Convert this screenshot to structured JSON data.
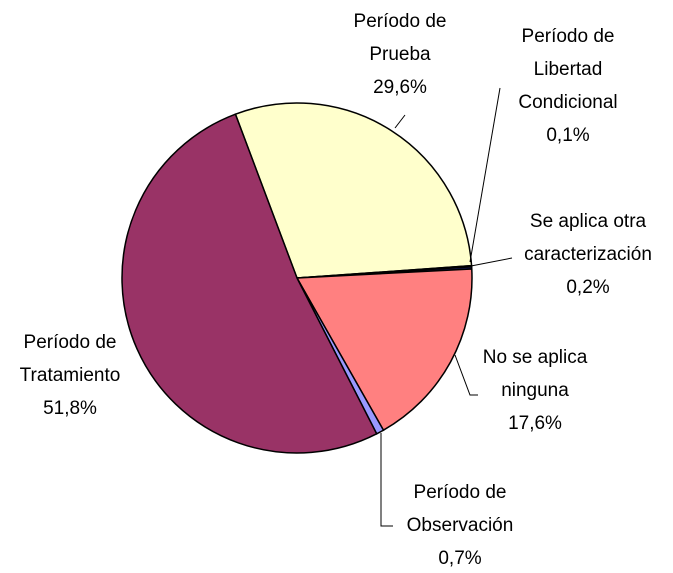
{
  "chart_data": {
    "type": "pie",
    "categories": [
      "Período de Prueba",
      "Período de Libertad Condicional",
      "Se aplica otra caracterización",
      "No se aplica ninguna",
      "Período de Observación",
      "Período de Tratamiento"
    ],
    "values": [
      29.6,
      0.1,
      0.2,
      17.6,
      0.7,
      51.8
    ],
    "value_labels": [
      "29,6%",
      "0,1%",
      "0,2%",
      "17,6%",
      "0,7%",
      "51,8%"
    ],
    "colors": [
      "#ffffcc",
      "#333366",
      "#1a1a66",
      "#ff8080",
      "#9999ff",
      "#993366"
    ]
  }
}
